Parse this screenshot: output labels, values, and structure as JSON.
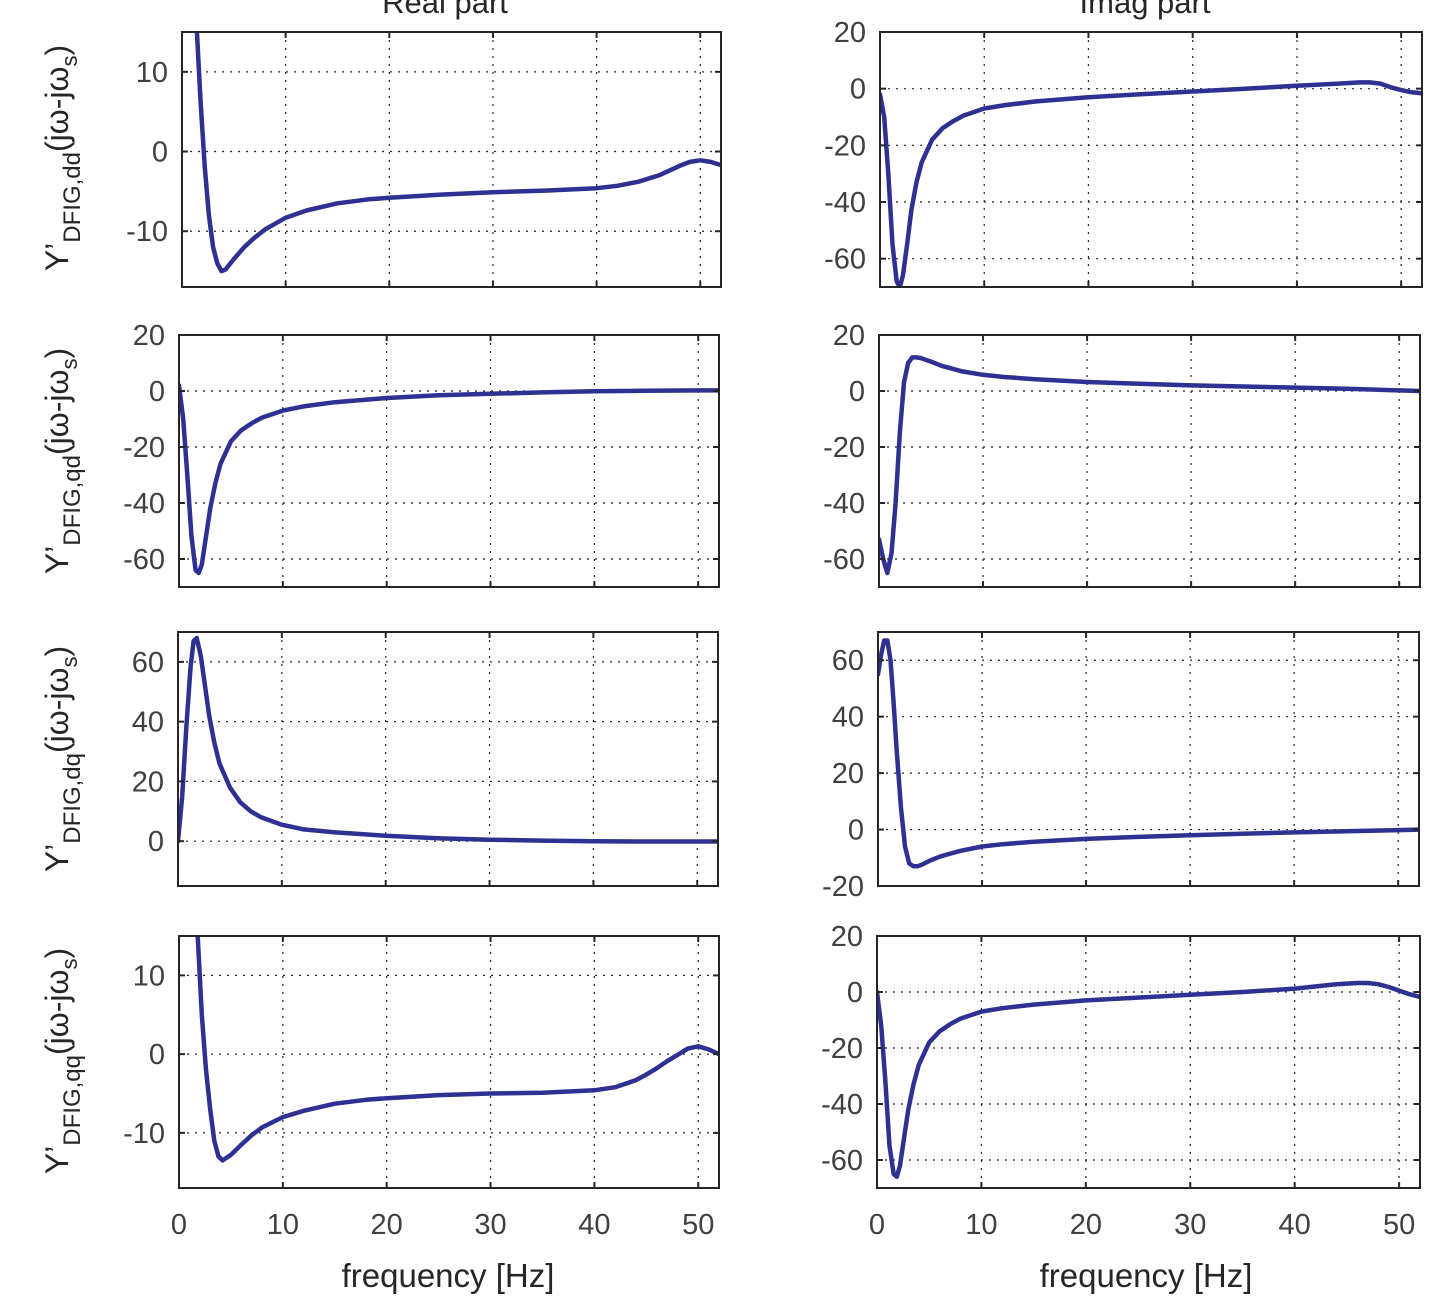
{
  "figure": {
    "column_titles": [
      "Real part",
      "Imag part"
    ],
    "xlabel": "frequency [Hz]",
    "ylabel_main": "Y’",
    "ylabel_tail": "(jω-jω",
    "ylabel_end": ")",
    "ylabel_sub_s": "s"
  },
  "chart_data": [
    {
      "type": "line",
      "panel": "Real part, dd",
      "title": "Real part",
      "ylabel": "Y’DFIG,dd(jω-jωs)",
      "ylabel_sub": "DFIG,dd",
      "xlabel": "",
      "xlim": [
        0,
        52
      ],
      "ylim": [
        -17,
        15
      ],
      "xticks": [
        0,
        10,
        20,
        30,
        40,
        50
      ],
      "yticks": [
        -10,
        0,
        10
      ],
      "grid": true,
      "x": [
        1.4,
        1.8,
        2.2,
        2.6,
        3.0,
        3.4,
        3.8,
        4.2,
        5,
        6,
        7,
        8,
        10,
        12,
        15,
        18,
        20,
        25,
        30,
        35,
        40,
        42,
        44,
        46,
        48,
        49,
        50,
        51,
        52
      ],
      "y": [
        16,
        6,
        -2,
        -8,
        -12,
        -14,
        -15,
        -14.8,
        -13.5,
        -12,
        -10.8,
        -9.8,
        -8.3,
        -7.4,
        -6.5,
        -6,
        -5.8,
        -5.4,
        -5.1,
        -4.9,
        -4.6,
        -4.3,
        -3.8,
        -3,
        -1.8,
        -1.3,
        -1.1,
        -1.3,
        -1.7
      ]
    },
    {
      "type": "line",
      "panel": "Imag part, dd",
      "title": "Imag part",
      "ylabel": "",
      "xlabel": "",
      "xlim": [
        0,
        52
      ],
      "ylim": [
        -70,
        20
      ],
      "xticks": [
        0,
        10,
        20,
        30,
        40,
        50
      ],
      "yticks": [
        -60,
        -40,
        -20,
        0,
        20
      ],
      "grid": true,
      "x": [
        0,
        0.4,
        0.8,
        1.2,
        1.6,
        1.9,
        2.2,
        2.6,
        3.0,
        3.5,
        4,
        5,
        6,
        7,
        8,
        10,
        12,
        15,
        20,
        25,
        30,
        35,
        40,
        44,
        46,
        47,
        48,
        49,
        50,
        51,
        52
      ],
      "y": [
        -2,
        -10,
        -30,
        -55,
        -68,
        -70,
        -66,
        -55,
        -43,
        -33,
        -26,
        -18,
        -14,
        -11.5,
        -9.5,
        -7,
        -5.8,
        -4.5,
        -3,
        -2,
        -1,
        0,
        1,
        1.8,
        2.2,
        2.2,
        1.8,
        0.5,
        -0.5,
        -1.3,
        -1.6
      ]
    },
    {
      "type": "line",
      "panel": "Real part, qd",
      "ylabel": "Y’DFIG,qd(jω-jωs)",
      "ylabel_sub": "DFIG,qd",
      "xlabel": "",
      "xlim": [
        0,
        52
      ],
      "ylim": [
        -70,
        20
      ],
      "xticks": [
        0,
        10,
        20,
        30,
        40,
        50
      ],
      "yticks": [
        -60,
        -40,
        -20,
        0,
        20
      ],
      "grid": true,
      "x": [
        0,
        0.4,
        0.8,
        1.2,
        1.6,
        1.9,
        2.2,
        2.6,
        3.0,
        3.5,
        4,
        5,
        6,
        7,
        8,
        10,
        12,
        15,
        20,
        25,
        30,
        35,
        40,
        45,
        50,
        52
      ],
      "y": [
        2,
        -10,
        -30,
        -52,
        -64,
        -65,
        -62,
        -52,
        -42,
        -33,
        -26,
        -18,
        -14,
        -11.5,
        -9.5,
        -7,
        -5.5,
        -4,
        -2.5,
        -1.5,
        -1,
        -0.5,
        -0.1,
        0.1,
        0.2,
        0.2
      ]
    },
    {
      "type": "line",
      "panel": "Imag part, qd",
      "ylabel": "",
      "xlabel": "",
      "xlim": [
        0,
        52
      ],
      "ylim": [
        -70,
        20
      ],
      "xticks": [
        0,
        10,
        20,
        30,
        40,
        50
      ],
      "yticks": [
        -60,
        -40,
        -20,
        0,
        20
      ],
      "grid": true,
      "x": [
        0,
        0.4,
        0.8,
        1.2,
        1.6,
        2.0,
        2.4,
        2.8,
        3.2,
        3.6,
        4,
        5,
        6,
        7,
        8,
        10,
        12,
        15,
        20,
        25,
        30,
        35,
        40,
        45,
        50,
        52
      ],
      "y": [
        -53,
        -60,
        -65,
        -58,
        -40,
        -15,
        3,
        10,
        12,
        12,
        11.8,
        10.5,
        9,
        8,
        7,
        5.8,
        5,
        4.2,
        3.2,
        2.6,
        2,
        1.6,
        1.2,
        0.8,
        0.2,
        0
      ]
    },
    {
      "type": "line",
      "panel": "Real part, dq",
      "ylabel": "Y’DFIG,dq(jω-jωs)",
      "ylabel_sub": "DFIG,dq",
      "xlabel": "",
      "xlim": [
        0,
        52
      ],
      "ylim": [
        -15,
        70
      ],
      "xticks": [
        0,
        10,
        20,
        30,
        40,
        50
      ],
      "yticks": [
        0,
        20,
        40,
        60
      ],
      "grid": true,
      "x": [
        0,
        0.4,
        0.8,
        1.2,
        1.5,
        1.8,
        2.2,
        2.6,
        3.0,
        3.5,
        4,
        5,
        6,
        7,
        8,
        10,
        12,
        15,
        20,
        25,
        30,
        35,
        40,
        45,
        50,
        52
      ],
      "y": [
        0,
        15,
        38,
        58,
        67,
        68,
        62,
        52,
        42,
        33,
        26,
        18,
        13,
        10,
        8,
        5.5,
        4,
        3,
        1.8,
        1,
        0.5,
        0.2,
        0,
        -0.1,
        -0.1,
        -0.1
      ]
    },
    {
      "type": "line",
      "panel": "Imag part, dq",
      "ylabel": "",
      "xlabel": "",
      "xlim": [
        0,
        52
      ],
      "ylim": [
        -20,
        70
      ],
      "xticks": [
        0,
        10,
        20,
        30,
        40,
        50
      ],
      "yticks": [
        -20,
        0,
        20,
        40,
        60
      ],
      "grid": true,
      "x": [
        0,
        0.3,
        0.6,
        0.9,
        1.2,
        1.5,
        1.8,
        2.2,
        2.6,
        3.0,
        3.4,
        3.8,
        4.2,
        5,
        6,
        7,
        8,
        10,
        12,
        15,
        20,
        25,
        30,
        35,
        40,
        45,
        50,
        52
      ],
      "y": [
        55,
        62,
        67,
        67,
        60,
        45,
        28,
        8,
        -6,
        -12,
        -13,
        -13,
        -12.5,
        -11,
        -9.5,
        -8.5,
        -7.5,
        -6,
        -5.2,
        -4.3,
        -3.3,
        -2.6,
        -2,
        -1.5,
        -1,
        -0.6,
        -0.2,
        0
      ]
    },
    {
      "type": "line",
      "panel": "Real part, qq",
      "ylabel": "Y’DFIG,qq(jω-jωs)",
      "ylabel_sub": "DFIG,qq",
      "xlabel": "frequency [Hz]",
      "xlim": [
        0,
        52
      ],
      "ylim": [
        -17,
        15
      ],
      "xticks": [
        0,
        10,
        20,
        30,
        40,
        50
      ],
      "yticks": [
        -10,
        0,
        10
      ],
      "grid": true,
      "x": [
        1.8,
        2.2,
        2.6,
        3.0,
        3.4,
        3.8,
        4.2,
        5,
        6,
        7,
        8,
        10,
        12,
        15,
        18,
        20,
        25,
        30,
        35,
        40,
        42,
        44,
        45,
        46,
        47,
        48,
        49,
        50,
        51,
        52
      ],
      "y": [
        15,
        5,
        -2,
        -7,
        -11,
        -13,
        -13.5,
        -12.8,
        -11.5,
        -10.3,
        -9.3,
        -8,
        -7.2,
        -6.3,
        -5.8,
        -5.6,
        -5.2,
        -5,
        -4.9,
        -4.6,
        -4.2,
        -3.3,
        -2.6,
        -1.8,
        -0.9,
        -0.1,
        0.7,
        1,
        0.6,
        0
      ]
    },
    {
      "type": "line",
      "panel": "Imag part, qq",
      "ylabel": "",
      "xlabel": "frequency [Hz]",
      "xlim": [
        0,
        52
      ],
      "ylim": [
        -70,
        20
      ],
      "xticks": [
        0,
        10,
        20,
        30,
        40,
        50
      ],
      "yticks": [
        -60,
        -40,
        -20,
        0,
        20
      ],
      "grid": true,
      "x": [
        0,
        0.4,
        0.8,
        1.2,
        1.6,
        1.9,
        2.2,
        2.6,
        3.0,
        3.5,
        4,
        5,
        6,
        7,
        8,
        10,
        12,
        15,
        20,
        25,
        30,
        35,
        40,
        44,
        46,
        47,
        48,
        49,
        50,
        51,
        52
      ],
      "y": [
        0,
        -12,
        -32,
        -55,
        -65,
        -66,
        -62,
        -52,
        -42,
        -33,
        -26,
        -18,
        -14,
        -11.5,
        -9.5,
        -7,
        -5.8,
        -4.5,
        -3,
        -2,
        -1,
        0,
        1.2,
        2.8,
        3.2,
        3.2,
        2.8,
        1.8,
        0.5,
        -0.8,
        -1.8
      ]
    }
  ]
}
